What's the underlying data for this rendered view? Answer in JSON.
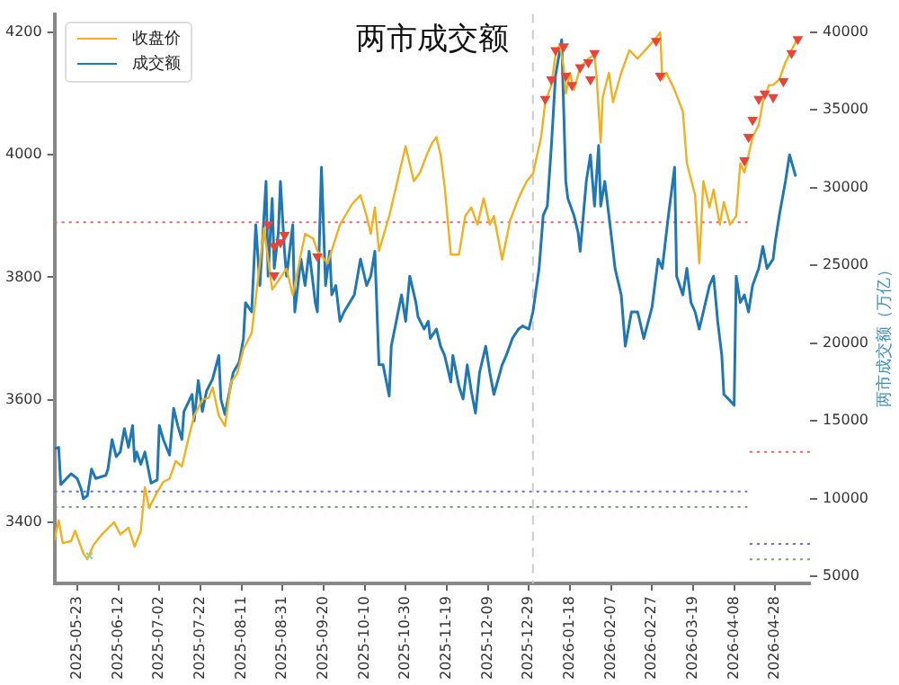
{
  "chart_data": {
    "type": "line",
    "title": "两市成交额",
    "y2label": "两市成交额（万亿）",
    "legend": "top left",
    "grid": false,
    "marker": "none",
    "line_style": "solid",
    "xlim": [
      "2025-05-12",
      "2026-05-15"
    ],
    "xticks": [
      "2025-05-23",
      "2025-06-12",
      "2025-07-02",
      "2025-07-22",
      "2025-08-11",
      "2025-08-31",
      "2025-09-20",
      "2025-10-10",
      "2025-10-30",
      "2025-11-19",
      "2025-12-09",
      "2025-12-29",
      "2026-01-18",
      "2026-02-07",
      "2026-02-27",
      "2026-03-19",
      "2026-04-08",
      "2026-04-28"
    ],
    "ylim": [
      3300,
      4230
    ],
    "yticks": [
      3400,
      3600,
      3800,
      4000,
      4200
    ],
    "y2lim": [
      4550,
      41150
    ],
    "y2ticks": [
      5000,
      10000,
      15000,
      20000,
      25000,
      30000,
      35000,
      40000
    ],
    "ref_lines": [
      {
        "axis": "y",
        "value": 3890,
        "color": "#e06666",
        "line_style": "dotted"
      },
      {
        "axis": "y",
        "value": 3450,
        "color": "#6a6ae0",
        "line_style": "dotted"
      },
      {
        "axis": "y",
        "value": 3425,
        "color": "#6aaa55",
        "line_style": "dotted"
      },
      {
        "axis": "y2",
        "value": 13000,
        "color": "#e06666",
        "line_style": "dotted"
      },
      {
        "axis": "y2",
        "value": 7100,
        "color": "#6a6ae0",
        "line_style": "dotted"
      },
      {
        "axis": "y2",
        "value": 6100,
        "color": "#6aaa55",
        "line_style": "dotted"
      },
      {
        "axis": "x",
        "value": "2025-12-31",
        "color": "#cccccc",
        "line_style": "dashed"
      }
    ],
    "series": [
      {
        "name": "收盘价",
        "color": "#f2b01e",
        "x": [
          "2025-05-12",
          "2025-05-14",
          "2025-05-16",
          "2025-05-20",
          "2025-05-22",
          "2025-05-26",
          "2025-05-28",
          "2025-05-31",
          "2025-06-04",
          "2025-06-10",
          "2025-06-13",
          "2025-06-17",
          "2025-06-20",
          "2025-06-23",
          "2025-06-25",
          "2025-06-27",
          "2025-06-30",
          "2025-07-04",
          "2025-07-07",
          "2025-07-10",
          "2025-07-13",
          "2025-07-16",
          "2025-07-19",
          "2025-07-23",
          "2025-07-26",
          "2025-07-28",
          "2025-07-31",
          "2025-08-03",
          "2025-08-06",
          "2025-08-09",
          "2025-08-12",
          "2025-08-16",
          "2025-08-22",
          "2025-08-26",
          "2025-09-02",
          "2025-09-05",
          "2025-09-11",
          "2025-09-15",
          "2025-09-17",
          "2025-09-22",
          "2025-09-28",
          "2025-10-04",
          "2025-10-08",
          "2025-10-11",
          "2025-10-13",
          "2025-10-15",
          "2025-10-17",
          "2025-10-22",
          "2025-10-26",
          "2025-10-28",
          "2025-10-30",
          "2025-11-03",
          "2025-11-06",
          "2025-11-10",
          "2025-11-12",
          "2025-11-14",
          "2025-11-16",
          "2025-11-18",
          "2025-11-21",
          "2025-11-25",
          "2025-11-28",
          "2025-12-01",
          "2025-12-04",
          "2025-12-07",
          "2025-12-10",
          "2025-12-12",
          "2025-12-16",
          "2025-12-20",
          "2025-12-24",
          "2025-12-28",
          "2025-12-31",
          "2026-01-04",
          "2026-01-06",
          "2026-01-09",
          "2026-01-11",
          "2026-01-13",
          "2026-01-15",
          "2026-01-16",
          "2026-01-18",
          "2026-01-20",
          "2026-01-23",
          "2026-01-27",
          "2026-01-30",
          "2026-01-31",
          "2026-02-02",
          "2026-02-03",
          "2026-02-06",
          "2026-02-08",
          "2026-02-12",
          "2026-02-16",
          "2026-02-20",
          "2026-03-01",
          "2026-03-03",
          "2026-03-04",
          "2026-03-06",
          "2026-03-10",
          "2026-03-14",
          "2026-03-16",
          "2026-03-20",
          "2026-03-22",
          "2026-03-24",
          "2026-03-27",
          "2026-03-29",
          "2026-04-01",
          "2026-04-03",
          "2026-04-06",
          "2026-04-09",
          "2026-04-11",
          "2026-04-13",
          "2026-04-15",
          "2026-04-17",
          "2026-04-20",
          "2026-04-22",
          "2026-04-25",
          "2026-04-27",
          "2026-04-30",
          "2026-05-03",
          "2026-05-06",
          "2026-05-09"
        ],
        "values": [
          3371,
          3403,
          3366,
          3369,
          3386,
          3349,
          3340,
          3363,
          3380,
          3400,
          3380,
          3391,
          3360,
          3386,
          3457,
          3423,
          3443,
          3466,
          3471,
          3500,
          3491,
          3534,
          3574,
          3600,
          3603,
          3620,
          3574,
          3557,
          3629,
          3643,
          3683,
          3709,
          3880,
          3780,
          3814,
          3771,
          3871,
          3863,
          3843,
          3823,
          3886,
          3920,
          3934,
          3900,
          3871,
          3914,
          3843,
          3900,
          3957,
          3986,
          4014,
          3957,
          3971,
          4006,
          4020,
          4029,
          4000,
          3949,
          3837,
          3837,
          3900,
          3914,
          3886,
          3929,
          3886,
          3900,
          3829,
          3894,
          3929,
          3957,
          3969,
          4029,
          4086,
          4114,
          4163,
          4180,
          4143,
          4100,
          4134,
          4106,
          4143,
          4157,
          4163,
          4129,
          4020,
          4094,
          4134,
          4086,
          4134,
          4171,
          4157,
          4191,
          4200,
          4123,
          4134,
          4106,
          4071,
          3986,
          3934,
          3823,
          3957,
          3914,
          3943,
          3886,
          3923,
          3886,
          3900,
          3986,
          3971,
          4000,
          4029,
          4049,
          4086,
          4114,
          4114,
          4123,
          4151,
          4171,
          4191
        ]
      },
      {
        "name": "成交额",
        "axis": "y2",
        "color": "#1f77b4",
        "x": [
          "2025-05-12",
          "2025-05-14",
          "2025-05-15",
          "2025-05-20",
          "2025-05-23",
          "2025-05-25",
          "2025-05-26",
          "2025-05-28",
          "2025-05-30",
          "2025-06-01",
          "2025-06-06",
          "2025-06-07",
          "2025-06-09",
          "2025-06-11",
          "2025-06-13",
          "2025-06-15",
          "2025-06-17",
          "2025-06-19",
          "2025-06-20",
          "2025-06-21",
          "2025-06-23",
          "2025-06-25",
          "2025-06-28",
          "2025-07-01",
          "2025-07-02",
          "2025-07-04",
          "2025-07-07",
          "2025-07-09",
          "2025-07-11",
          "2025-07-13",
          "2025-07-14",
          "2025-07-18",
          "2025-07-19",
          "2025-07-21",
          "2025-07-23",
          "2025-07-25",
          "2025-07-28",
          "2025-07-31",
          "2025-08-01",
          "2025-08-03",
          "2025-08-07",
          "2025-08-10",
          "2025-08-12",
          "2025-08-13",
          "2025-08-16",
          "2025-08-18",
          "2025-08-20",
          "2025-08-23",
          "2025-08-24",
          "2025-08-26",
          "2025-08-27",
          "2025-08-29",
          "2025-08-30",
          "2025-09-01",
          "2025-09-02",
          "2025-09-05",
          "2025-09-06",
          "2025-09-09",
          "2025-09-11",
          "2025-09-13",
          "2025-09-16",
          "2025-09-17",
          "2025-09-19",
          "2025-09-21",
          "2025-09-23",
          "2025-09-24",
          "2025-09-26",
          "2025-09-28",
          "2025-09-30",
          "2025-10-05",
          "2025-10-08",
          "2025-10-11",
          "2025-10-13",
          "2025-10-15",
          "2025-10-17",
          "2025-10-19",
          "2025-10-22",
          "2025-10-23",
          "2025-10-28",
          "2025-10-30",
          "2025-11-01",
          "2025-11-04",
          "2025-11-05",
          "2025-11-08",
          "2025-11-10",
          "2025-11-11",
          "2025-11-14",
          "2025-11-16",
          "2025-11-18",
          "2025-11-21",
          "2025-11-22",
          "2025-11-25",
          "2025-11-27",
          "2025-11-29",
          "2025-12-01",
          "2025-12-03",
          "2025-12-05",
          "2025-12-08",
          "2025-12-10",
          "2025-12-12",
          "2025-12-16",
          "2025-12-18",
          "2025-12-21",
          "2025-12-24",
          "2025-12-26",
          "2025-12-29",
          "2025-12-31",
          "2026-01-03",
          "2026-01-05",
          "2026-01-07",
          "2026-01-09",
          "2026-01-11",
          "2026-01-14",
          "2026-01-16",
          "2026-01-17",
          "2026-01-20",
          "2026-01-22",
          "2026-01-23",
          "2026-01-26",
          "2026-01-28",
          "2026-01-30",
          "2026-02-01",
          "2026-02-02",
          "2026-02-04",
          "2026-02-07",
          "2026-02-09",
          "2026-02-12",
          "2026-02-14",
          "2026-02-17",
          "2026-02-20",
          "2026-02-23",
          "2026-02-27",
          "2026-03-02",
          "2026-03-04",
          "2026-03-07",
          "2026-03-10",
          "2026-03-11",
          "2026-03-14",
          "2026-03-16",
          "2026-03-18",
          "2026-03-20",
          "2026-03-22",
          "2026-03-24",
          "2026-03-27",
          "2026-03-29",
          "2026-03-31",
          "2026-04-02",
          "2026-04-03",
          "2026-04-06",
          "2026-04-08",
          "2026-04-09",
          "2026-04-11",
          "2026-04-13",
          "2026-04-15",
          "2026-04-17",
          "2026-04-20",
          "2026-04-22",
          "2026-04-24",
          "2026-04-27",
          "2026-04-28",
          "2026-04-30",
          "2026-05-03",
          "2026-05-05",
          "2026-05-08"
        ],
        "values": [
          13200,
          13300,
          10900,
          11600,
          11300,
          10600,
          10000,
          10200,
          11900,
          11300,
          11500,
          11900,
          13800,
          12700,
          13000,
          14500,
          13300,
          14700,
          12400,
          13000,
          12200,
          13000,
          11000,
          11200,
          14700,
          13800,
          12800,
          15800,
          14700,
          13800,
          15600,
          16700,
          15000,
          17600,
          15600,
          16900,
          17700,
          19200,
          16400,
          15400,
          18100,
          18800,
          20300,
          22600,
          22000,
          27600,
          23700,
          30400,
          24300,
          29300,
          24800,
          27100,
          30400,
          25900,
          24300,
          27600,
          22000,
          25400,
          23700,
          25900,
          22600,
          22000,
          31300,
          23700,
          25900,
          23100,
          23700,
          21400,
          22000,
          23100,
          25400,
          23700,
          24300,
          25900,
          18600,
          18600,
          16600,
          19800,
          23100,
          21400,
          24300,
          22600,
          21700,
          20900,
          21400,
          20300,
          20900,
          19800,
          19200,
          17500,
          19200,
          17200,
          16400,
          18600,
          16900,
          15500,
          18100,
          19800,
          18100,
          16700,
          18600,
          19200,
          20300,
          20900,
          21100,
          20900,
          22000,
          24800,
          28200,
          28800,
          32700,
          37200,
          39500,
          30400,
          29300,
          28200,
          27100,
          25900,
          30400,
          32100,
          28800,
          32700,
          28800,
          30400,
          27100,
          24800,
          23100,
          19800,
          22000,
          22000,
          20300,
          22300,
          25400,
          24800,
          28200,
          31300,
          24300,
          23100,
          24800,
          22600,
          22000,
          20900,
          22000,
          23700,
          24300,
          21400,
          19200,
          16700,
          16300,
          16000,
          24300,
          22600,
          23100,
          22000,
          23700,
          24800,
          26200,
          24800,
          25400,
          26500,
          28200,
          30400,
          32100,
          30700
        ]
      },
      {
        "type": "scatter",
        "marker": "triangle",
        "color": "#e8443a",
        "x": [
          "2025-08-24",
          "2025-08-27",
          "2025-08-27",
          "2025-08-30",
          "2025-09-01",
          "2025-09-17",
          "2026-01-06",
          "2026-01-09",
          "2026-01-11",
          "2026-01-15",
          "2026-01-16",
          "2026-01-19",
          "2026-01-23",
          "2026-01-27",
          "2026-01-28",
          "2026-01-30",
          "2026-03-01",
          "2026-03-03",
          "2026-04-13",
          "2026-04-15",
          "2026-04-17",
          "2026-04-20",
          "2026-04-23",
          "2026-04-27",
          "2026-05-02",
          "2026-05-06",
          "2026-05-09"
        ],
        "values": [
          3886,
          3851,
          3803,
          3857,
          3869,
          3834,
          4091,
          4123,
          4171,
          4177,
          4129,
          4114,
          4143,
          4151,
          4123,
          4166,
          4186,
          4129,
          3991,
          4029,
          4057,
          4091,
          4100,
          4094,
          4120,
          4166,
          4189
        ]
      },
      {
        "type": "scatter",
        "marker": "cross",
        "color": "#9ccc8c",
        "x": [
          "2025-05-29"
        ],
        "values": [
          3345
        ]
      }
    ]
  }
}
